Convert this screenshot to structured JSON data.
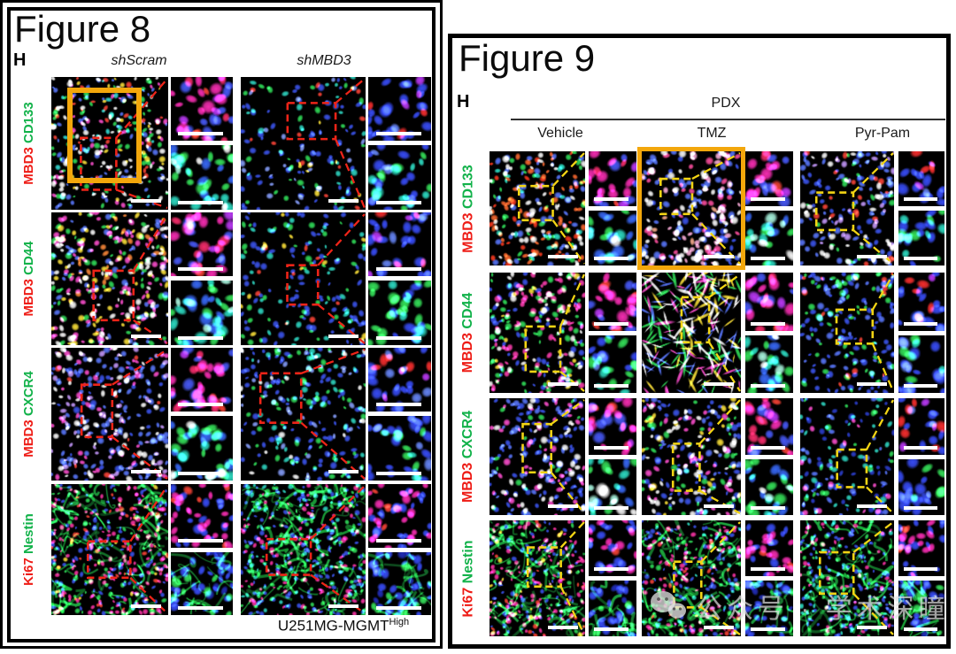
{
  "colors": {
    "label_red": "#ee1c16",
    "label_green": "#12b24a",
    "highlight_orange": "#f3a70b",
    "callout_red": "#ee2418",
    "callout_yellow": "#f2d414",
    "scalebar_white": "#ffffff",
    "frame_black": "#000000"
  },
  "figure8": {
    "title": "Figure 8",
    "panel_label": "H",
    "column_labels": [
      "shScram",
      "shMBD3"
    ],
    "row_labels": [
      {
        "red": "MBD3",
        "green": "CD133"
      },
      {
        "red": "MBD3",
        "green": "CD44"
      },
      {
        "red": "MBD3",
        "green": "CXCR4"
      },
      {
        "red": "Ki67",
        "green": "Nestin"
      }
    ],
    "footer": {
      "text": "U251MG-MGMT",
      "superscript": "High"
    },
    "highlight": {
      "type": "region-box",
      "row": 0,
      "column": 0
    },
    "callout_color": "#ee2418",
    "grid": [
      [
        {
          "large": "f8_r1_A",
          "insets": [
            "ins_magenta",
            "ins_cyangreen"
          ]
        },
        {
          "large": "f8_r1_B",
          "insets": [
            "ins_bluered",
            "ins_bluegreen"
          ]
        }
      ],
      [
        {
          "large": "f8_r2_A",
          "insets": [
            "ins_magenta",
            "ins_cyangreen"
          ]
        },
        {
          "large": "f8_r2_B",
          "insets": [
            "ins_bluered",
            "ins_bluegreen"
          ]
        }
      ],
      [
        {
          "large": "f8_r3_A",
          "insets": [
            "ins_magenta",
            "ins_cyangreen"
          ]
        },
        {
          "large": "f8_r3_B",
          "insets": [
            "ins_bluered",
            "ins_bluegreen"
          ]
        }
      ],
      [
        {
          "large": "f8_r4_A",
          "insets": [
            "ins_magentablue",
            "ins_meshblue"
          ]
        },
        {
          "large": "f8_r4_B",
          "insets": [
            "ins_magentablue",
            "ins_meshblue"
          ]
        }
      ]
    ]
  },
  "figure9": {
    "title": "Figure 9",
    "panel_label": "H",
    "group_label": "PDX",
    "column_labels": [
      "Vehicle",
      "TMZ",
      "Pyr-Pam"
    ],
    "row_labels": [
      {
        "red": "MBD3",
        "green": "CD133"
      },
      {
        "red": "MBD3",
        "green": "CD44"
      },
      {
        "red": "MBD3",
        "green": "CXCR4"
      },
      {
        "red": "Ki67",
        "green": "Nestin"
      }
    ],
    "highlight": {
      "type": "panel-border",
      "row": 0,
      "column": 1
    },
    "callout_color": "#f2d414",
    "grid": [
      [
        {
          "large": "f9_r1_V",
          "insets": [
            "ins_magenta",
            "ins_cyangreen"
          ]
        },
        {
          "large": "f9_r1_T",
          "insets": [
            "ins_magenta",
            "ins_cyangreen"
          ]
        },
        {
          "large": "f9_r1_P",
          "insets": [
            "ins_bluered",
            "ins_bluegreen"
          ]
        }
      ],
      [
        {
          "large": "f9_r2_V",
          "insets": [
            "ins_magenta",
            "ins_bluegreen"
          ]
        },
        {
          "large": "f9_r2_T",
          "insets": [
            "ins_magenta",
            "ins_cyangreen"
          ]
        },
        {
          "large": "f9_r2_P",
          "insets": [
            "ins_bluered",
            "ins_bluegreen"
          ]
        }
      ],
      [
        {
          "large": "f9_r3_V",
          "insets": [
            "ins_magenta",
            "ins_cyangreen"
          ]
        },
        {
          "large": "f9_r3_T",
          "insets": [
            "ins_magenta",
            "ins_cyangreen"
          ]
        },
        {
          "large": "f9_r3_P",
          "insets": [
            "ins_bluered",
            "ins_bluegreen"
          ]
        }
      ],
      [
        {
          "large": "f9_r4_V",
          "insets": [
            "ins_magentablue",
            "ins_meshblue"
          ]
        },
        {
          "large": "f9_r4_T",
          "insets": [
            "ins_magentablue",
            "ins_meshblue"
          ]
        },
        {
          "large": "f9_r4_P",
          "insets": [
            "ins_magentablue",
            "ins_meshblue"
          ]
        }
      ]
    ]
  },
  "watermark": {
    "icon": "wechat-logo",
    "text": "公众号 · 学术深瞳"
  },
  "micrograph_styles": {
    "f8_r1_A": {
      "colors": [
        [
          "#ffffff",
          26
        ],
        [
          "#5a78ff",
          22
        ],
        [
          "#31e05a",
          20
        ],
        [
          "#ff4fd0",
          10
        ],
        [
          "#ffe43a",
          9
        ],
        [
          "#ff4538",
          7
        ],
        [
          "#35e0d8",
          6
        ]
      ],
      "density": 160,
      "size": [
        2,
        4.5
      ]
    },
    "f8_r1_B": {
      "colors": [
        [
          "#3c55f0",
          40
        ],
        [
          "#2fd9c4",
          14
        ],
        [
          "#31e05a",
          16
        ],
        [
          "#ffe43a",
          7
        ],
        [
          "#ff4538",
          9
        ],
        [
          "#88a0ff",
          14
        ]
      ],
      "density": 75,
      "size": [
        2.5,
        5
      ]
    },
    "f8_r2_A": {
      "colors": [
        [
          "#ff4fd0",
          24
        ],
        [
          "#ffe43a",
          20
        ],
        [
          "#31e05a",
          18
        ],
        [
          "#ff8a3a",
          10
        ],
        [
          "#5a78ff",
          16
        ],
        [
          "#ffffff",
          12
        ]
      ],
      "density": 170,
      "size": [
        2.5,
        5
      ]
    },
    "f8_r2_B": {
      "colors": [
        [
          "#3c55f0",
          48
        ],
        [
          "#31e05a",
          22
        ],
        [
          "#ffe43a",
          8
        ],
        [
          "#ff4538",
          8
        ],
        [
          "#2fd9c4",
          14
        ]
      ],
      "density": 85,
      "size": [
        2.5,
        5
      ]
    },
    "f8_r3_A": {
      "colors": [
        [
          "#5a78ff",
          30
        ],
        [
          "#c79aff",
          18
        ],
        [
          "#ffffff",
          18
        ],
        [
          "#ff4fd0",
          16
        ],
        [
          "#ff4538",
          6
        ],
        [
          "#3c55f0",
          12
        ]
      ],
      "density": 150,
      "size": [
        2.5,
        5
      ]
    },
    "f8_r3_B": {
      "colors": [
        [
          "#3c55f0",
          40
        ],
        [
          "#31e05a",
          22
        ],
        [
          "#2fd9c4",
          16
        ],
        [
          "#ffffff",
          8
        ],
        [
          "#88a0ff",
          14
        ]
      ],
      "density": 115,
      "size": [
        2.5,
        5
      ]
    },
    "f8_r4_A": {
      "mesh": 1,
      "colors": [
        [
          "#ff35a8",
          34
        ],
        [
          "#3c55f0",
          28
        ],
        [
          "#31e05a",
          22
        ],
        [
          "#ffe43a",
          6
        ],
        [
          "#ff4538",
          10
        ]
      ],
      "density": 210,
      "size": [
        2,
        4
      ]
    },
    "f8_r4_B": {
      "mesh": 1,
      "colors": [
        [
          "#3c55f0",
          40
        ],
        [
          "#31e05a",
          26
        ],
        [
          "#ff35a8",
          22
        ],
        [
          "#2fd9c4",
          12
        ]
      ],
      "density": 200,
      "size": [
        2,
        4
      ]
    },
    "f9_r1_V": {
      "colors": [
        [
          "#ff6a30",
          24
        ],
        [
          "#ff3b20",
          12
        ],
        [
          "#ffffff",
          18
        ],
        [
          "#5a78ff",
          22
        ],
        [
          "#2fe3c9",
          10
        ],
        [
          "#31e05a",
          14
        ]
      ],
      "density": 160,
      "size": [
        2.5,
        5
      ]
    },
    "f9_r1_T": {
      "colors": [
        [
          "#ffffff",
          24
        ],
        [
          "#ffb0dd",
          20
        ],
        [
          "#5a78ff",
          26
        ],
        [
          "#ff4fa0",
          12
        ],
        [
          "#3c55f0",
          12
        ],
        [
          "#ffb090",
          6
        ]
      ],
      "density": 160,
      "size": [
        3,
        5.5
      ]
    },
    "f9_r1_P": {
      "colors": [
        [
          "#5a78ff",
          30
        ],
        [
          "#ffffff",
          16
        ],
        [
          "#c79aff",
          12
        ],
        [
          "#3c55f0",
          22
        ],
        [
          "#31e05a",
          12
        ],
        [
          "#ff4538",
          8
        ]
      ],
      "density": 135,
      "size": [
        2.5,
        5
      ]
    },
    "f9_r2_V": {
      "colors": [
        [
          "#ff3fb0",
          30
        ],
        [
          "#31e05a",
          26
        ],
        [
          "#3c55f0",
          22
        ],
        [
          "#ffe43a",
          10
        ],
        [
          "#ffffff",
          12
        ]
      ],
      "density": 170,
      "size": [
        2.5,
        5
      ]
    },
    "f9_r2_T": {
      "elong": 1,
      "colors": [
        [
          "#31e05a",
          26
        ],
        [
          "#ffe43a",
          18
        ],
        [
          "#ff4fd0",
          20
        ],
        [
          "#ffffff",
          16
        ],
        [
          "#5a78ff",
          20
        ]
      ],
      "density": 150,
      "size": [
        3,
        6
      ]
    },
    "f9_r2_P": {
      "colors": [
        [
          "#3c55f0",
          44
        ],
        [
          "#31e05a",
          28
        ],
        [
          "#ff4538",
          10
        ],
        [
          "#5a78ff",
          18
        ]
      ],
      "density": 135,
      "size": [
        2.5,
        5
      ]
    },
    "f9_r3_V": {
      "colors": [
        [
          "#3c55f0",
          30
        ],
        [
          "#ff4fd0",
          22
        ],
        [
          "#ffffff",
          18
        ],
        [
          "#5a78ff",
          20
        ],
        [
          "#31e05a",
          10
        ]
      ],
      "density": 160,
      "size": [
        2.5,
        5
      ]
    },
    "f9_r3_T": {
      "colors": [
        [
          "#3c55f0",
          26
        ],
        [
          "#ffffff",
          22
        ],
        [
          "#31e05a",
          18
        ],
        [
          "#ffe43a",
          10
        ],
        [
          "#ff4fd0",
          14
        ],
        [
          "#5a78ff",
          10
        ]
      ],
      "density": 160,
      "size": [
        2.5,
        5
      ]
    },
    "f9_r3_P": {
      "colors": [
        [
          "#2c3fd0",
          40
        ],
        [
          "#2fd9c4",
          16
        ],
        [
          "#31e05a",
          14
        ],
        [
          "#ff4fd0",
          10
        ],
        [
          "#5a78ff",
          20
        ]
      ],
      "density": 105,
      "size": [
        2.5,
        5
      ]
    },
    "f9_r4_V": {
      "mesh": 1,
      "colors": [
        [
          "#ff35a8",
          36
        ],
        [
          "#3c55f0",
          26
        ],
        [
          "#31e05a",
          24
        ],
        [
          "#ff4538",
          8
        ],
        [
          "#ffe43a",
          6
        ]
      ],
      "density": 210,
      "size": [
        2,
        4
      ]
    },
    "f9_r4_T": {
      "mesh": 1,
      "colors": [
        [
          "#ff35a8",
          28
        ],
        [
          "#3c55f0",
          32
        ],
        [
          "#31e05a",
          26
        ],
        [
          "#2fe3c9",
          8
        ],
        [
          "#ff4538",
          6
        ]
      ],
      "density": 200,
      "size": [
        2,
        4
      ]
    },
    "f9_r4_P": {
      "mesh": 1,
      "colors": [
        [
          "#3c55f0",
          42
        ],
        [
          "#31e05a",
          26
        ],
        [
          "#ff35a8",
          18
        ],
        [
          "#2fe3c9",
          14
        ]
      ],
      "density": 190,
      "size": [
        2,
        4
      ]
    },
    "ins_magenta": {
      "colors": [
        [
          "#ff2fb8",
          40
        ],
        [
          "#ff2f70",
          16
        ],
        [
          "#4a5cff",
          28
        ],
        [
          "#c23bff",
          10
        ],
        [
          "#ff4538",
          6
        ]
      ],
      "density": 70,
      "size": [
        5,
        9
      ]
    },
    "ins_cyangreen": {
      "colors": [
        [
          "#2fe3c9",
          28
        ],
        [
          "#37e85c",
          28
        ],
        [
          "#3a6cff",
          28
        ],
        [
          "#b0ffe8",
          8
        ],
        [
          "#ffffff",
          8
        ]
      ],
      "density": 70,
      "size": [
        5,
        9
      ]
    },
    "ins_bluered": {
      "colors": [
        [
          "#3a4fff",
          62
        ],
        [
          "#ff3030",
          16
        ],
        [
          "#c23bff",
          10
        ],
        [
          "#6a8aff",
          12
        ]
      ],
      "density": 60,
      "size": [
        5,
        9
      ]
    },
    "ins_bluegreen": {
      "colors": [
        [
          "#3a4fff",
          50
        ],
        [
          "#37e85c",
          30
        ],
        [
          "#2fe3c9",
          12
        ],
        [
          "#6a8aff",
          8
        ]
      ],
      "density": 65,
      "size": [
        5,
        9
      ]
    },
    "ins_magentablue": {
      "colors": [
        [
          "#ff2fb8",
          50
        ],
        [
          "#3a4fff",
          40
        ],
        [
          "#ff4538",
          10
        ]
      ],
      "density": 95,
      "size": [
        4,
        7
      ]
    },
    "ins_meshblue": {
      "mesh": 1,
      "colors": [
        [
          "#3a4fff",
          62
        ],
        [
          "#2430c0",
          20
        ],
        [
          "#37e85c",
          18
        ]
      ],
      "density": 95,
      "size": [
        4,
        7
      ]
    }
  }
}
